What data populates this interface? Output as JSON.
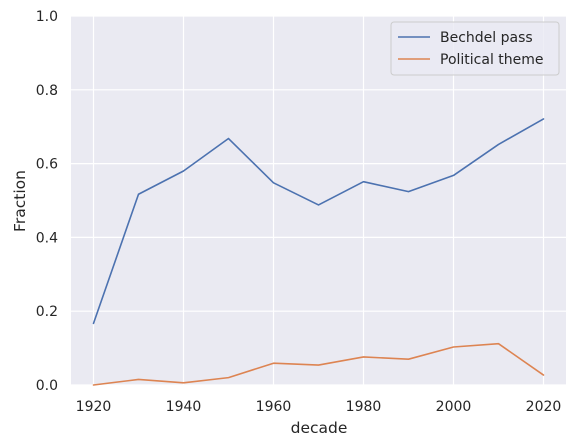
{
  "chart_data": {
    "type": "line",
    "title": "",
    "xlabel": "decade",
    "ylabel": "Fraction",
    "xlim": [
      1915,
      2025
    ],
    "ylim": [
      0,
      1
    ],
    "x": [
      1920,
      1930,
      1940,
      1950,
      1960,
      1970,
      1980,
      1990,
      2000,
      2010,
      2020
    ],
    "xticks": [
      1920,
      1940,
      1960,
      1980,
      2000,
      2020
    ],
    "yticks": [
      0.0,
      0.2,
      0.4,
      0.6,
      0.8,
      1.0
    ],
    "ytick_labels": [
      "0.0",
      "0.2",
      "0.4",
      "0.6",
      "0.8",
      "1.0"
    ],
    "grid": true,
    "legend_position": "top-right",
    "series": [
      {
        "name": "Bechdel pass",
        "color": "#4c72b0",
        "values": [
          0.167,
          0.517,
          0.58,
          0.668,
          0.548,
          0.488,
          0.551,
          0.524,
          0.568,
          0.652,
          0.721
        ]
      },
      {
        "name": "Political theme",
        "color": "#dd8452",
        "values": [
          0.0,
          0.015,
          0.006,
          0.02,
          0.059,
          0.054,
          0.076,
          0.07,
          0.103,
          0.112,
          0.027
        ]
      }
    ]
  }
}
